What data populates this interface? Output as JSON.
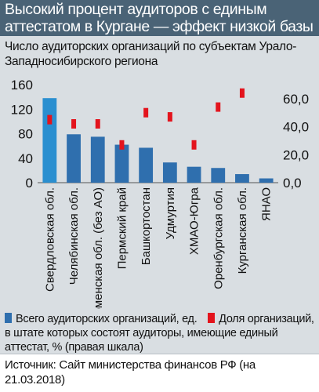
{
  "header": {
    "title": "Высокий процент аудиторов с единым аттестатом в Кургане — эффект низкой базы",
    "subtitle": "Число аудиторских организаций по субъектам Урало-Западносибирского региона"
  },
  "legend": {
    "bars_label": "Всего аудиторских организаций, ед.",
    "share_label": "Доля организаций, в штате которых состоят аудиторы, имеющие единый аттестат, % (правая шкала)"
  },
  "source": "Источник: Сайт министерства финансов РФ (на 21.03.2018)",
  "colors": {
    "bar": "#2f6fae",
    "bar_highlight": "#2a8fd0",
    "marker": "#e3141d",
    "title_bg": "#4a6376"
  },
  "chart_data": {
    "type": "bar",
    "categories": [
      "Свердловская обл.",
      "Челябинская обл.",
      "Тюменская обл. (без АО)",
      "Пермский край",
      "Башкортостан",
      "Удмуртия",
      "ХМАО-Югра",
      "Оренбургская обл.",
      "Курганская обл.",
      "ЯНАО"
    ],
    "series": [
      {
        "name": "Всего аудиторских организаций, ед.",
        "axis": "left",
        "values": [
          138,
          79,
          75,
          62,
          57,
          33,
          26,
          24,
          14,
          7
        ]
      },
      {
        "name": "Доля организаций, в штате которых состоят аудиторы, имеющие единый аттестат, % (правая шкала)",
        "axis": "right",
        "values": [
          45,
          42,
          42,
          27,
          50,
          47,
          27,
          54,
          64,
          null
        ]
      }
    ],
    "left_axis": {
      "ticks": [
        "0",
        "40",
        "80",
        "120",
        "160"
      ],
      "ylim": [
        0,
        160
      ]
    },
    "right_axis": {
      "ticks": [
        "0,0",
        "20,0",
        "40,0",
        "60,0"
      ],
      "ylim": [
        0,
        70
      ]
    },
    "grid": false
  }
}
